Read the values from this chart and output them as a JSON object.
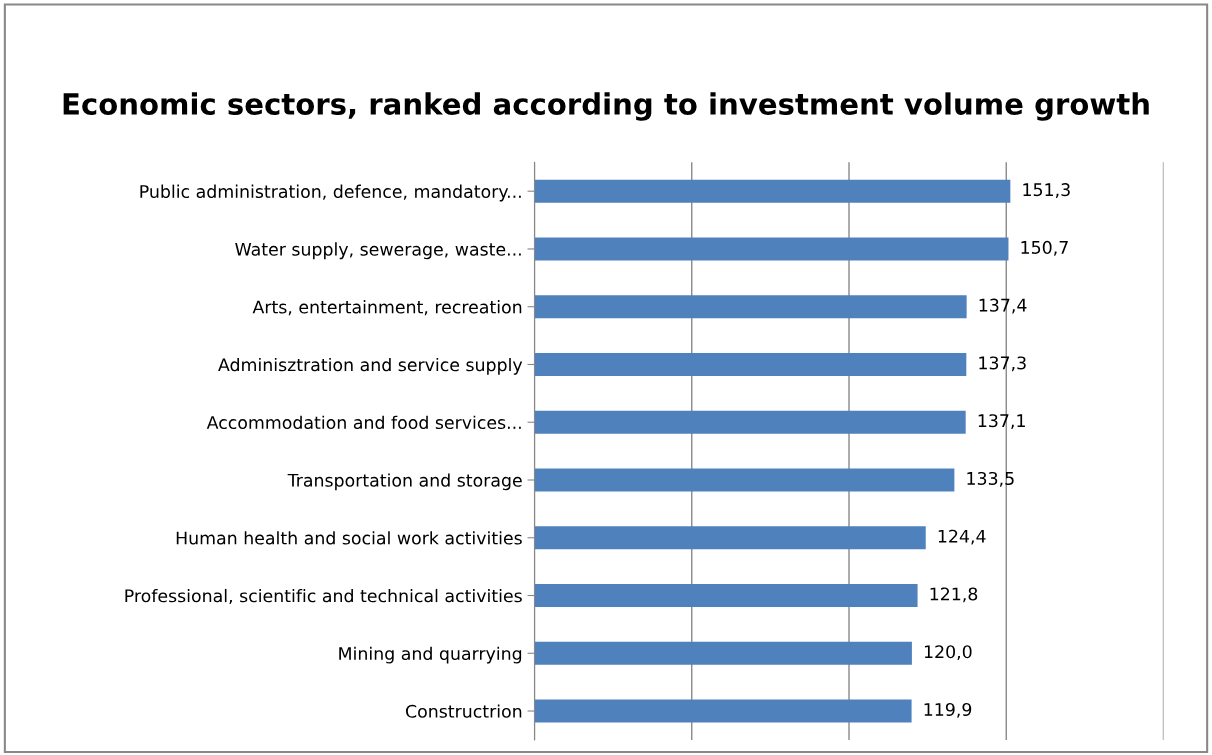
{
  "chart_data": {
    "type": "bar",
    "orientation": "horizontal",
    "title": "Economic sectors, ranked according to investment volume growth",
    "categories": [
      "Public administration, defence, mandatory...",
      "Water supply, sewerage, waste...",
      "Arts, entertainment, recreation",
      "Adminisztration and service supply",
      "Accommodation and food services...",
      "Transportation and storage",
      "Human health and social work activities",
      "Professional, scientific and technical activities",
      "Mining and quarrying",
      "Constructrion"
    ],
    "values": [
      151.3,
      150.7,
      137.4,
      137.3,
      137.1,
      133.5,
      124.4,
      121.8,
      120.0,
      119.9
    ],
    "value_labels": [
      "151,3",
      "150,7",
      "137,4",
      "137,3",
      "137,1",
      "133,5",
      "124,4",
      "121,8",
      "120,0",
      "119,9"
    ],
    "color": "#4f81bd",
    "xlim": [
      0,
      200
    ],
    "xticks": [
      {
        "value": 0,
        "label": null
      },
      {
        "value": 50,
        "label": null
      },
      {
        "value": 100,
        "label": null
      },
      {
        "value": 150,
        "label": null
      },
      {
        "value": 200,
        "label": null
      }
    ],
    "grid": "x"
  }
}
